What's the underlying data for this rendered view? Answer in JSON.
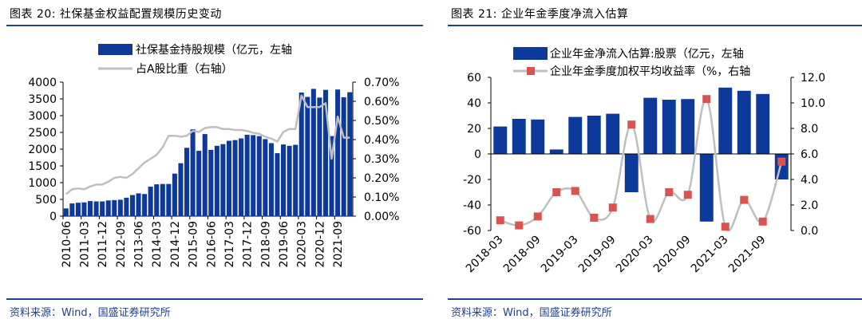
{
  "colors": {
    "bar": "#0d3a9a",
    "line": "#bfbfbf",
    "marker": "#d9534f",
    "accent": "#1f3f8f"
  },
  "left": {
    "title": "图表 20:  社保基金权益配置规模历史变动",
    "source": "资料来源：Wind，国盛证券研究所"
  },
  "right": {
    "title": "图表 21:  企业年金季度净流入估算",
    "source": "资料来源：Wind，国盛证券研究所"
  },
  "chart_data": [
    {
      "type": "bar",
      "legend": [
        "社保基金持股规模（亿元，左轴",
        "占A股比重（右轴）"
      ],
      "x_tick_labels": [
        "2010-06",
        "2011-03",
        "2011-12",
        "2012-09",
        "2013-06",
        "2014-03",
        "2014-12",
        "2015-09",
        "2016-06",
        "2017-03",
        "2017-12",
        "2018-09",
        "2019-06",
        "2020-03",
        "2020-12",
        "2021-09"
      ],
      "ylim": [
        0,
        4000
      ],
      "yticks": [
        0,
        500,
        1000,
        1500,
        2000,
        2500,
        3000,
        3500,
        4000
      ],
      "ylim_right": [
        0,
        0.7
      ],
      "yticks_right": [
        "0.00%",
        "0.10%",
        "0.20%",
        "0.30%",
        "0.40%",
        "0.50%",
        "0.60%",
        "0.70%"
      ],
      "series": [
        {
          "name": "社保基金持股规模（亿元，左轴",
          "kind": "bar",
          "axis": "left",
          "values": [
            230,
            380,
            400,
            410,
            450,
            440,
            440,
            470,
            480,
            490,
            550,
            630,
            680,
            660,
            880,
            950,
            960,
            960,
            1270,
            1580,
            2040,
            2590,
            1950,
            2450,
            1980,
            2100,
            2150,
            2250,
            2270,
            2320,
            2430,
            2420,
            2390,
            2300,
            2180,
            1880,
            2140,
            2100,
            2130,
            3690,
            3560,
            3800,
            3540,
            3770,
            2390,
            3780,
            3550,
            3700
          ]
        },
        {
          "name": "占A股比重（右轴）",
          "kind": "line",
          "axis": "right",
          "values": [
            0.115,
            0.14,
            0.145,
            0.14,
            0.155,
            0.165,
            0.165,
            0.18,
            0.2,
            0.205,
            0.2,
            0.22,
            0.25,
            0.28,
            0.3,
            0.32,
            0.36,
            0.42,
            0.42,
            0.415,
            0.42,
            0.445,
            0.44,
            0.46,
            0.465,
            0.465,
            0.455,
            0.455,
            0.45,
            0.45,
            0.445,
            0.435,
            0.43,
            0.415,
            0.405,
            0.39,
            0.44,
            0.455,
            0.455,
            0.63,
            0.57,
            0.57,
            0.57,
            0.59,
            0.3,
            0.52,
            0.41,
            0.41
          ]
        }
      ]
    },
    {
      "type": "bar",
      "legend": [
        "企业年金净流入估算:股票（亿元，左轴",
        "企业年金季度加权平均收益率（%，右轴"
      ],
      "x_tick_labels": [
        "2018-03",
        "2018-09",
        "2019-03",
        "2019-09",
        "2020-03",
        "2020-09",
        "2021-03",
        "2021-09"
      ],
      "categories": [
        "2018-03",
        "2018-06",
        "2018-09",
        "2018-12",
        "2019-03",
        "2019-06",
        "2019-09",
        "2019-12",
        "2020-03",
        "2020-06",
        "2020-09",
        "2020-12",
        "2021-03",
        "2021-06",
        "2021-09",
        "2021-12"
      ],
      "ylim": [
        -60,
        60
      ],
      "yticks": [
        -60,
        -40,
        -20,
        0,
        20,
        40,
        60
      ],
      "ylim_right": [
        0,
        12
      ],
      "yticks_right": [
        "0.0",
        "2.0",
        "4.0",
        "6.0",
        "8.0",
        "10.0",
        "12.0"
      ],
      "series": [
        {
          "name": "企业年金净流入估算:股票（亿元，左轴",
          "kind": "bar",
          "axis": "left",
          "values": [
            21.5,
            27.5,
            27,
            3.5,
            29,
            30,
            31.5,
            -30,
            44,
            42.5,
            43,
            -53,
            52,
            49.5,
            47,
            -20
          ]
        },
        {
          "name": "企业年金季度加权平均收益率（%，右轴",
          "kind": "line-marker",
          "axis": "right",
          "values": [
            0.8,
            0.4,
            1.1,
            3.0,
            3.1,
            1.0,
            1.8,
            8.3,
            0.9,
            3.0,
            2.8,
            10.3,
            0.3,
            2.4,
            0.7,
            5.4
          ]
        }
      ]
    }
  ]
}
